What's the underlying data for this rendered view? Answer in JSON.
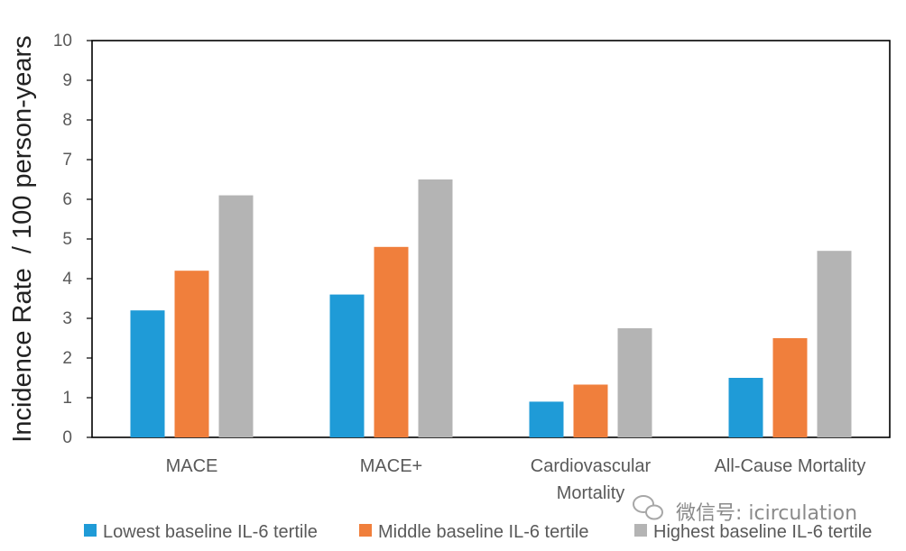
{
  "chart_data": {
    "type": "bar",
    "categories": [
      "MACE",
      "MACE+",
      "Cardiovascular Mortality",
      "All-Cause Mortality"
    ],
    "category_lines": [
      [
        "MACE"
      ],
      [
        "MACE+"
      ],
      [
        "Cardiovascular",
        "Mortality"
      ],
      [
        "All-Cause Mortality"
      ]
    ],
    "series": [
      {
        "name": "Lowest baseline IL-6 tertile",
        "color": "#1F9BD7",
        "values": [
          3.2,
          3.6,
          0.9,
          1.5
        ]
      },
      {
        "name": "Middle baseline IL-6 tertile",
        "color": "#F07F3C",
        "values": [
          4.2,
          4.8,
          1.33,
          2.5
        ]
      },
      {
        "name": "Highest baseline IL-6 tertile",
        "color": "#B4B4B4",
        "values": [
          6.1,
          6.5,
          2.75,
          4.7
        ]
      }
    ],
    "ylabel": "Incidence Rate  / 100 person-years",
    "xlabel": "",
    "ylim": [
      0,
      10
    ],
    "yticks": [
      0,
      1,
      2,
      3,
      4,
      5,
      6,
      7,
      8,
      9,
      10
    ],
    "grid": false,
    "legend_position": "bottom"
  },
  "watermark": {
    "text": "微信号: icirculation",
    "icon": "wechat-icon"
  }
}
